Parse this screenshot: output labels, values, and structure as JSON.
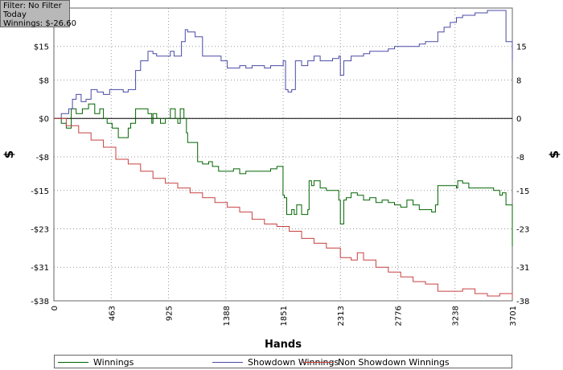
{
  "info": {
    "filter": "Filter: No Filter",
    "period": "Today",
    "winnings": "Winnings: $-26.60"
  },
  "colors": {
    "winnings": "#006400",
    "showdown": "#4a4aa8",
    "non_showdown": "#c84040",
    "grid": "#999999",
    "zero_line": "#000000"
  },
  "chart_data": {
    "type": "line",
    "xlabel": "Hands",
    "ylabel": "$",
    "ylabel_right": "$",
    "xlim": [
      0,
      3701
    ],
    "ylim": [
      -38,
      23
    ],
    "x_ticks": [
      0,
      463,
      925,
      1388,
      1851,
      2313,
      2776,
      3238,
      3701
    ],
    "x_tick_labels": [
      "0",
      "463",
      "925",
      "1388",
      "1851",
      "2313",
      "2776",
      "3238",
      "3701"
    ],
    "y_ticks": [
      15,
      8,
      0,
      -8,
      -15,
      -23,
      -31,
      -38
    ],
    "y_tick_labels": [
      "$15",
      "$8",
      "$0",
      "-$8",
      "-$15",
      "-$23",
      "-$31",
      "-$38"
    ],
    "y_tick_labels_right": [
      "15",
      "8",
      "0",
      "-8",
      "-15",
      "-23",
      "-31",
      "-38"
    ],
    "grid": true,
    "legend_position": "bottom",
    "series": [
      {
        "name": "Winnings",
        "color": "#006400",
        "x": [
          0,
          60,
          100,
          140,
          180,
          230,
          280,
          330,
          370,
          400,
          430,
          470,
          520,
          600,
          620,
          660,
          700,
          760,
          790,
          800,
          830,
          860,
          900,
          940,
          980,
          1000,
          1020,
          1050,
          1070,
          1080,
          1110,
          1160,
          1200,
          1250,
          1280,
          1300,
          1330,
          1400,
          1450,
          1500,
          1550,
          1600,
          1650,
          1700,
          1750,
          1800,
          1850,
          1860,
          1880,
          1920,
          1940,
          1960,
          2000,
          2050,
          2060,
          2080,
          2100,
          2150,
          2200,
          2250,
          2300,
          2313,
          2340,
          2360,
          2400,
          2450,
          2500,
          2550,
          2600,
          2650,
          2700,
          2750,
          2800,
          2850,
          2900,
          2950,
          3000,
          3050,
          3080,
          3100,
          3150,
          3200,
          3250,
          3260,
          3300,
          3350,
          3400,
          3450,
          3500,
          3550,
          3600,
          3620,
          3650,
          3701
        ],
        "values": [
          0,
          -1,
          -2,
          2,
          1,
          2,
          3,
          1,
          2,
          0,
          -1,
          -2,
          -4,
          -2,
          -1,
          2,
          2,
          1,
          -1,
          1,
          0,
          -1,
          0,
          2,
          0,
          -1,
          2,
          0,
          -3,
          -5,
          -5,
          -9,
          -9.5,
          -9,
          -10,
          -10,
          -11,
          -11,
          -10.5,
          -11.5,
          -11,
          -11,
          -11,
          -11,
          -10.5,
          -10,
          -16,
          -16.5,
          -20,
          -19,
          -20,
          -18,
          -20,
          -19,
          -13,
          -14,
          -13,
          -14.5,
          -15,
          -15,
          -17,
          -22,
          -17,
          -16.5,
          -15.5,
          -16,
          -17,
          -16.5,
          -17.5,
          -17,
          -17.5,
          -18,
          -18.5,
          -17,
          -18,
          -19,
          -19,
          -19.5,
          -18,
          -14,
          -14,
          -14,
          -14.5,
          -13,
          -13.5,
          -14.5,
          -14.5,
          -14.5,
          -14.5,
          -15,
          -16,
          -15.5,
          -18,
          -26.6
        ]
      },
      {
        "name": "Showdown Winnings",
        "color": "#4a4aa8",
        "x": [
          0,
          60,
          120,
          150,
          180,
          220,
          260,
          300,
          350,
          400,
          450,
          470,
          520,
          560,
          600,
          660,
          700,
          760,
          800,
          830,
          860,
          900,
          940,
          970,
          1000,
          1030,
          1060,
          1080,
          1100,
          1140,
          1200,
          1250,
          1300,
          1350,
          1400,
          1450,
          1500,
          1550,
          1600,
          1650,
          1700,
          1750,
          1800,
          1851,
          1870,
          1890,
          1920,
          1950,
          2000,
          2050,
          2080,
          2100,
          2150,
          2200,
          2250,
          2300,
          2313,
          2340,
          2400,
          2450,
          2500,
          2550,
          2600,
          2650,
          2700,
          2750,
          2800,
          2850,
          2900,
          2950,
          3000,
          3050,
          3100,
          3150,
          3200,
          3250,
          3300,
          3350,
          3400,
          3450,
          3500,
          3550,
          3600,
          3650,
          3701
        ],
        "values": [
          0,
          1,
          2,
          4,
          5,
          3.5,
          4,
          6,
          5.5,
          5,
          6,
          6,
          6,
          5.5,
          6,
          10,
          12,
          14,
          13.5,
          13,
          13,
          13,
          14,
          13,
          13,
          16,
          18.5,
          18,
          18,
          17,
          13,
          13,
          13,
          12,
          10.5,
          10.5,
          11,
          10.5,
          11,
          11,
          10.5,
          11,
          11,
          12,
          6,
          5.5,
          6,
          12,
          11,
          12,
          12,
          13,
          12,
          12,
          12.5,
          13,
          9,
          12,
          13,
          13,
          13.5,
          14,
          14,
          14,
          14.5,
          15,
          15,
          15,
          15,
          15.5,
          16,
          16,
          18,
          19,
          20,
          21,
          21.5,
          21.5,
          22,
          22,
          22.5,
          22.5,
          22.5,
          16,
          12
        ]
      },
      {
        "name": "Non Showdown Winnings",
        "color": "#c84040",
        "x": [
          0,
          100,
          200,
          300,
          400,
          500,
          600,
          700,
          800,
          900,
          1000,
          1100,
          1200,
          1300,
          1400,
          1500,
          1600,
          1700,
          1800,
          1900,
          2000,
          2100,
          2200,
          2313,
          2400,
          2450,
          2500,
          2600,
          2700,
          2800,
          2900,
          3000,
          3100,
          3200,
          3300,
          3400,
          3500,
          3600,
          3701
        ],
        "values": [
          0,
          -1.5,
          -3,
          -4.5,
          -6,
          -8.5,
          -9.5,
          -11,
          -12.5,
          -13.5,
          -14.5,
          -15.5,
          -16.5,
          -17.5,
          -18.5,
          -19.5,
          -21,
          -22,
          -22.5,
          -23.5,
          -25,
          -26,
          -27,
          -29,
          -29.5,
          -28,
          -29.5,
          -31,
          -32,
          -33,
          -34,
          -34.5,
          -36,
          -36,
          -35.5,
          -36.5,
          -37,
          -36.5,
          -37.5
        ]
      }
    ]
  }
}
